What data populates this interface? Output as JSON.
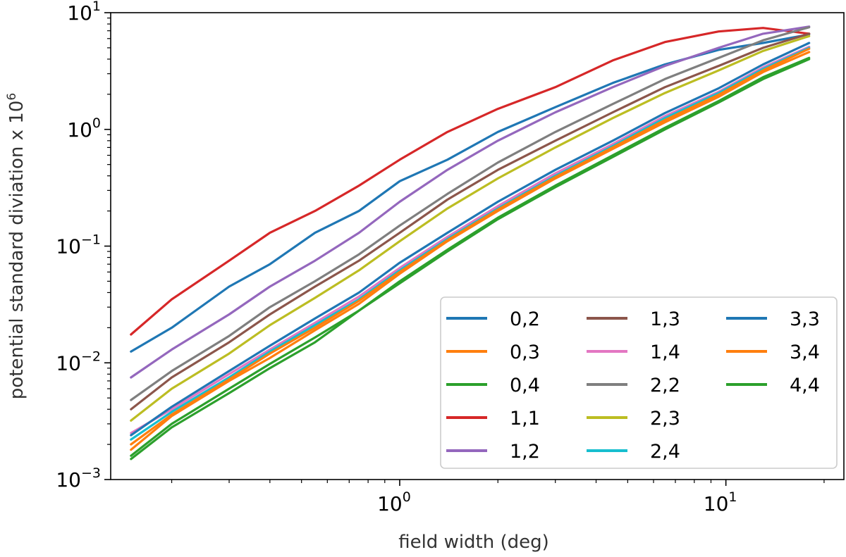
{
  "chart_data": {
    "type": "line",
    "title": "",
    "xlabel": "field width (deg)",
    "ylabel": "potential standard diviation x 10",
    "ylabel_superscript": "6",
    "xscale": "log",
    "yscale": "log",
    "xlim": [
      0.13,
      23
    ],
    "ylim": [
      0.001,
      10
    ],
    "x_ticks": [
      {
        "base": "10",
        "exp": "0"
      },
      {
        "base": "10",
        "exp": "1"
      }
    ],
    "y_ticks": [
      {
        "base": "10",
        "exp": "−3"
      },
      {
        "base": "10",
        "exp": "−2"
      },
      {
        "base": "10",
        "exp": "−1"
      },
      {
        "base": "10",
        "exp": "0"
      },
      {
        "base": "10",
        "exp": "1"
      }
    ],
    "legend_position": "lower-right",
    "legend_columns": 3,
    "x": [
      0.15,
      0.2,
      0.3,
      0.4,
      0.55,
      0.75,
      1.0,
      1.4,
      2.0,
      3.0,
      4.5,
      6.5,
      9.5,
      13.0,
      18.0
    ],
    "series": [
      {
        "name": "0,2",
        "color": "#1f77b4",
        "values": [
          0.0125,
          0.02,
          0.045,
          0.07,
          0.13,
          0.2,
          0.36,
          0.55,
          0.95,
          1.55,
          2.5,
          3.6,
          4.8,
          5.5,
          6.5
        ]
      },
      {
        "name": "0,3",
        "color": "#ff7f0e",
        "values": [
          0.0018,
          0.0035,
          0.007,
          0.011,
          0.019,
          0.032,
          0.058,
          0.11,
          0.2,
          0.38,
          0.68,
          1.15,
          1.9,
          3.1,
          4.6
        ]
      },
      {
        "name": "0,4",
        "color": "#2ca02c",
        "values": [
          0.0015,
          0.0028,
          0.0055,
          0.009,
          0.015,
          0.028,
          0.048,
          0.09,
          0.17,
          0.32,
          0.58,
          1.0,
          1.7,
          2.7,
          4.0
        ]
      },
      {
        "name": "1,1",
        "color": "#d62728",
        "values": [
          0.0175,
          0.035,
          0.075,
          0.13,
          0.2,
          0.33,
          0.55,
          0.95,
          1.5,
          2.3,
          3.9,
          5.6,
          6.9,
          7.4,
          6.6
        ]
      },
      {
        "name": "1,2",
        "color": "#9467bd",
        "values": [
          0.0075,
          0.013,
          0.026,
          0.045,
          0.075,
          0.13,
          0.24,
          0.45,
          0.8,
          1.4,
          2.3,
          3.5,
          5.0,
          6.6,
          7.6
        ]
      },
      {
        "name": "1,3",
        "color": "#8c564b",
        "values": [
          0.004,
          0.0075,
          0.015,
          0.026,
          0.045,
          0.075,
          0.13,
          0.25,
          0.45,
          0.8,
          1.4,
          2.3,
          3.5,
          5.0,
          6.6
        ]
      },
      {
        "name": "1,4",
        "color": "#e377c2",
        "values": [
          0.0025,
          0.004,
          0.008,
          0.013,
          0.022,
          0.037,
          0.065,
          0.12,
          0.22,
          0.42,
          0.75,
          1.3,
          2.1,
          3.4,
          5.1
        ]
      },
      {
        "name": "2,2",
        "color": "#7f7f7f",
        "values": [
          0.0048,
          0.0085,
          0.017,
          0.03,
          0.05,
          0.085,
          0.15,
          0.28,
          0.52,
          0.95,
          1.65,
          2.7,
          4.1,
          5.8,
          7.5
        ]
      },
      {
        "name": "2,3",
        "color": "#bcbd22",
        "values": [
          0.0032,
          0.006,
          0.012,
          0.021,
          0.036,
          0.062,
          0.11,
          0.21,
          0.38,
          0.7,
          1.25,
          2.05,
          3.2,
          4.7,
          6.3
        ]
      },
      {
        "name": "2,4",
        "color": "#17becf",
        "values": [
          0.0022,
          0.0038,
          0.0075,
          0.0125,
          0.021,
          0.035,
          0.062,
          0.115,
          0.21,
          0.4,
          0.72,
          1.25,
          2.05,
          3.3,
          5.0
        ]
      },
      {
        "name": "3,3",
        "color": "#1f77b4",
        "values": [
          0.0024,
          0.0042,
          0.0085,
          0.014,
          0.024,
          0.04,
          0.072,
          0.13,
          0.24,
          0.45,
          0.8,
          1.38,
          2.25,
          3.6,
          5.5
        ]
      },
      {
        "name": "3,4",
        "color": "#ff7f0e",
        "values": [
          0.002,
          0.0036,
          0.0072,
          0.012,
          0.02,
          0.034,
          0.06,
          0.112,
          0.205,
          0.39,
          0.7,
          1.2,
          1.98,
          3.2,
          4.9
        ]
      },
      {
        "name": "4,4",
        "color": "#2ca02c",
        "values": [
          0.0016,
          0.003,
          0.006,
          0.0098,
          0.0165,
          0.028,
          0.05,
          0.093,
          0.175,
          0.33,
          0.6,
          1.03,
          1.75,
          2.8,
          4.1
        ]
      }
    ]
  }
}
